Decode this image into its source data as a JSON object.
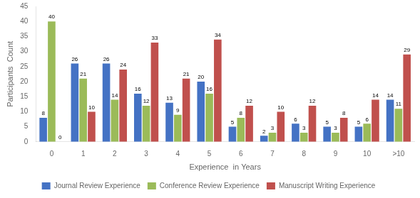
{
  "chart_data": {
    "type": "bar",
    "categories": [
      "0",
      "1",
      "2",
      "3",
      "4",
      "5",
      "6",
      "7",
      "8",
      "9",
      "10",
      ">10"
    ],
    "series": [
      {
        "name": "Journal Review Experience",
        "color": "#4472c4",
        "values": [
          8,
          26,
          26,
          16,
          13,
          20,
          5,
          2,
          6,
          5,
          5,
          14
        ]
      },
      {
        "name": "Conference Review Experience",
        "color": "#9bbb59",
        "values": [
          40,
          21,
          14,
          12,
          9,
          16,
          8,
          3,
          3,
          3,
          6,
          11
        ]
      },
      {
        "name": "Manuscript Writing Experience",
        "color": "#c0504d",
        "values": [
          0,
          10,
          24,
          33,
          21,
          34,
          12,
          10,
          12,
          8,
          14,
          29
        ]
      }
    ],
    "xlabel": "Experience  in Years",
    "ylabel": "Participants  Count",
    "ylim": [
      0,
      45
    ],
    "yticks": [
      0,
      5,
      10,
      15,
      20,
      25,
      30,
      35,
      40,
      45
    ],
    "grid": false,
    "legend": "bottom",
    "data_labels": true
  }
}
